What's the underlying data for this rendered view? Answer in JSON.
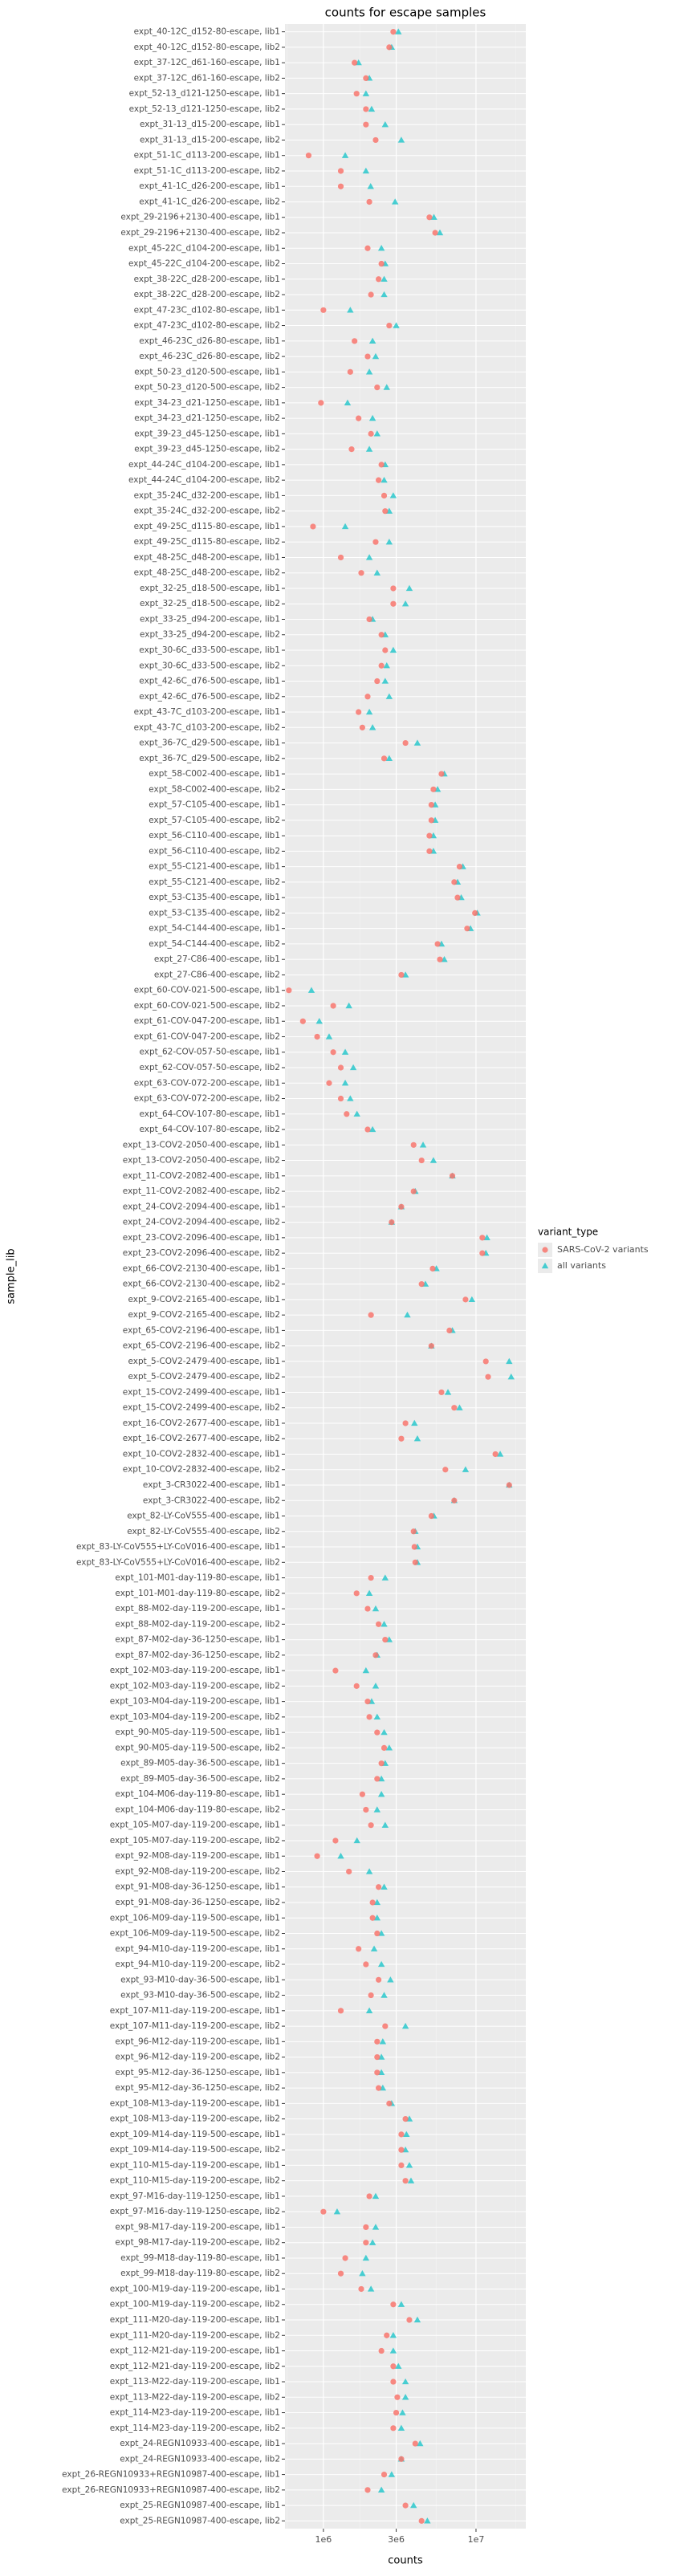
{
  "chart_data": {
    "type": "scatter",
    "title": "counts for escape samples",
    "x_label": "counts",
    "y_label": "sample_lib",
    "legend_title": "variant_type",
    "legend_position": "right",
    "grid": true,
    "xscale": "log",
    "xlim": [
      560000,
      21200000
    ],
    "xticks": [
      {
        "value": 1000000,
        "label": "1e6"
      },
      {
        "value": 3000000,
        "label": "3e6"
      },
      {
        "value": 10000000,
        "label": "1e7"
      }
    ],
    "categories": [
      "expt_40-12C_d152-80-escape, lib1",
      "expt_40-12C_d152-80-escape, lib2",
      "expt_37-12C_d61-160-escape, lib1",
      "expt_37-12C_d61-160-escape, lib2",
      "expt_52-13_d121-1250-escape, lib1",
      "expt_52-13_d121-1250-escape, lib2",
      "expt_31-13_d15-200-escape, lib1",
      "expt_31-13_d15-200-escape, lib2",
      "expt_51-1C_d113-200-escape, lib1",
      "expt_51-1C_d113-200-escape, lib2",
      "expt_41-1C_d26-200-escape, lib1",
      "expt_41-1C_d26-200-escape, lib2",
      "expt_29-2196+2130-400-escape, lib1",
      "expt_29-2196+2130-400-escape, lib2",
      "expt_45-22C_d104-200-escape, lib1",
      "expt_45-22C_d104-200-escape, lib2",
      "expt_38-22C_d28-200-escape, lib1",
      "expt_38-22C_d28-200-escape, lib2",
      "expt_47-23C_d102-80-escape, lib1",
      "expt_47-23C_d102-80-escape, lib2",
      "expt_46-23C_d26-80-escape, lib1",
      "expt_46-23C_d26-80-escape, lib2",
      "expt_50-23_d120-500-escape, lib1",
      "expt_50-23_d120-500-escape, lib2",
      "expt_34-23_d21-1250-escape, lib1",
      "expt_34-23_d21-1250-escape, lib2",
      "expt_39-23_d45-1250-escape, lib1",
      "expt_39-23_d45-1250-escape, lib2",
      "expt_44-24C_d104-200-escape, lib1",
      "expt_44-24C_d104-200-escape, lib2",
      "expt_35-24C_d32-200-escape, lib1",
      "expt_35-24C_d32-200-escape, lib2",
      "expt_49-25C_d115-80-escape, lib1",
      "expt_49-25C_d115-80-escape, lib2",
      "expt_48-25C_d48-200-escape, lib1",
      "expt_48-25C_d48-200-escape, lib2",
      "expt_32-25_d18-500-escape, lib1",
      "expt_32-25_d18-500-escape, lib2",
      "expt_33-25_d94-200-escape, lib1",
      "expt_33-25_d94-200-escape, lib2",
      "expt_30-6C_d33-500-escape, lib1",
      "expt_30-6C_d33-500-escape, lib2",
      "expt_42-6C_d76-500-escape, lib1",
      "expt_42-6C_d76-500-escape, lib2",
      "expt_43-7C_d103-200-escape, lib1",
      "expt_43-7C_d103-200-escape, lib2",
      "expt_36-7C_d29-500-escape, lib1",
      "expt_36-7C_d29-500-escape, lib2",
      "expt_58-C002-400-escape, lib1",
      "expt_58-C002-400-escape, lib2",
      "expt_57-C105-400-escape, lib1",
      "expt_57-C105-400-escape, lib2",
      "expt_56-C110-400-escape, lib1",
      "expt_56-C110-400-escape, lib2",
      "expt_55-C121-400-escape, lib1",
      "expt_55-C121-400-escape, lib2",
      "expt_53-C135-400-escape, lib1",
      "expt_53-C135-400-escape, lib2",
      "expt_54-C144-400-escape, lib1",
      "expt_54-C144-400-escape, lib2",
      "expt_27-C86-400-escape, lib1",
      "expt_27-C86-400-escape, lib2",
      "expt_60-COV-021-500-escape, lib1",
      "expt_60-COV-021-500-escape, lib2",
      "expt_61-COV-047-200-escape, lib1",
      "expt_61-COV-047-200-escape, lib2",
      "expt_62-COV-057-50-escape, lib1",
      "expt_62-COV-057-50-escape, lib2",
      "expt_63-COV-072-200-escape, lib1",
      "expt_63-COV-072-200-escape, lib2",
      "expt_64-COV-107-80-escape, lib1",
      "expt_64-COV-107-80-escape, lib2",
      "expt_13-COV2-2050-400-escape, lib1",
      "expt_13-COV2-2050-400-escape, lib2",
      "expt_11-COV2-2082-400-escape, lib1",
      "expt_11-COV2-2082-400-escape, lib2",
      "expt_24-COV2-2094-400-escape, lib1",
      "expt_24-COV2-2094-400-escape, lib2",
      "expt_23-COV2-2096-400-escape, lib1",
      "expt_23-COV2-2096-400-escape, lib2",
      "expt_66-COV2-2130-400-escape, lib1",
      "expt_66-COV2-2130-400-escape, lib2",
      "expt_9-COV2-2165-400-escape, lib1",
      "expt_9-COV2-2165-400-escape, lib2",
      "expt_65-COV2-2196-400-escape, lib1",
      "expt_65-COV2-2196-400-escape, lib2",
      "expt_5-COV2-2479-400-escape, lib1",
      "expt_5-COV2-2479-400-escape, lib2",
      "expt_15-COV2-2499-400-escape, lib1",
      "expt_15-COV2-2499-400-escape, lib2",
      "expt_16-COV2-2677-400-escape, lib1",
      "expt_16-COV2-2677-400-escape, lib2",
      "expt_10-COV2-2832-400-escape, lib1",
      "expt_10-COV2-2832-400-escape, lib2",
      "expt_3-CR3022-400-escape, lib1",
      "expt_3-CR3022-400-escape, lib2",
      "expt_82-LY-CoV555-400-escape, lib1",
      "expt_82-LY-CoV555-400-escape, lib2",
      "expt_83-LY-CoV555+LY-CoV016-400-escape, lib1",
      "expt_83-LY-CoV555+LY-CoV016-400-escape, lib2",
      "expt_101-M01-day-119-80-escape, lib1",
      "expt_101-M01-day-119-80-escape, lib2",
      "expt_88-M02-day-119-200-escape, lib1",
      "expt_88-M02-day-119-200-escape, lib2",
      "expt_87-M02-day-36-1250-escape, lib1",
      "expt_87-M02-day-36-1250-escape, lib2",
      "expt_102-M03-day-119-200-escape, lib1",
      "expt_102-M03-day-119-200-escape, lib2",
      "expt_103-M04-day-119-200-escape, lib1",
      "expt_103-M04-day-119-200-escape, lib2",
      "expt_90-M05-day-119-500-escape, lib1",
      "expt_90-M05-day-119-500-escape, lib2",
      "expt_89-M05-day-36-500-escape, lib1",
      "expt_89-M05-day-36-500-escape, lib2",
      "expt_104-M06-day-119-80-escape, lib1",
      "expt_104-M06-day-119-80-escape, lib2",
      "expt_105-M07-day-119-200-escape, lib1",
      "expt_105-M07-day-119-200-escape, lib2",
      "expt_92-M08-day-119-200-escape, lib1",
      "expt_92-M08-day-119-200-escape, lib2",
      "expt_91-M08-day-36-1250-escape, lib1",
      "expt_91-M08-day-36-1250-escape, lib2",
      "expt_106-M09-day-119-500-escape, lib1",
      "expt_106-M09-day-119-500-escape, lib2",
      "expt_94-M10-day-119-200-escape, lib1",
      "expt_94-M10-day-119-200-escape, lib2",
      "expt_93-M10-day-36-500-escape, lib1",
      "expt_93-M10-day-36-500-escape, lib2",
      "expt_107-M11-day-119-200-escape, lib1",
      "expt_107-M11-day-119-200-escape, lib2",
      "expt_96-M12-day-119-200-escape, lib1",
      "expt_96-M12-day-119-200-escape, lib2",
      "expt_95-M12-day-36-1250-escape, lib1",
      "expt_95-M12-day-36-1250-escape, lib2",
      "expt_108-M13-day-119-200-escape, lib1",
      "expt_108-M13-day-119-200-escape, lib2",
      "expt_109-M14-day-119-500-escape, lib1",
      "expt_109-M14-day-119-500-escape, lib2",
      "expt_110-M15-day-119-200-escape, lib1",
      "expt_110-M15-day-119-200-escape, lib2",
      "expt_97-M16-day-119-1250-escape, lib1",
      "expt_97-M16-day-119-1250-escape, lib2",
      "expt_98-M17-day-119-200-escape, lib1",
      "expt_98-M17-day-119-200-escape, lib2",
      "expt_99-M18-day-119-80-escape, lib1",
      "expt_99-M18-day-119-80-escape, lib2",
      "expt_100-M19-day-119-200-escape, lib1",
      "expt_100-M19-day-119-200-escape, lib2",
      "expt_111-M20-day-119-200-escape, lib1",
      "expt_111-M20-day-119-200-escape, lib2",
      "expt_112-M21-day-119-200-escape, lib1",
      "expt_112-M21-day-119-200-escape, lib2",
      "expt_113-M22-day-119-200-escape, lib1",
      "expt_113-M22-day-119-200-escape, lib2",
      "expt_114-M23-day-119-200-escape, lib1",
      "expt_114-M23-day-119-200-escape, lib2",
      "expt_24-REGN10933-400-escape, lib1",
      "expt_24-REGN10933-400-escape, lib2",
      "expt_26-REGN10933+REGN10987-400-escape, lib1",
      "expt_26-REGN10933+REGN10987-400-escape, lib2",
      "expt_25-REGN10987-400-escape, lib1",
      "expt_25-REGN10987-400-escape, lib2"
    ],
    "series": [
      {
        "name": "SARS-CoV-2 variants",
        "color": "#F8766D",
        "marker": "circle",
        "values": [
          2870000,
          2700000,
          1600000,
          1900000,
          1650000,
          1900000,
          1900000,
          2200000,
          800000,
          1300000,
          1300000,
          2000000,
          4950000,
          5400000,
          1950000,
          2400000,
          2300000,
          2050000,
          1000000,
          2700000,
          1600000,
          1950000,
          1500000,
          2250000,
          964000,
          1700000,
          2050000,
          1530000,
          2400000,
          2300000,
          2500000,
          2540000,
          855000,
          2200000,
          1300000,
          1770000,
          2870000,
          2870000,
          2000000,
          2400000,
          2540000,
          2400000,
          2250000,
          1950000,
          1700000,
          1800000,
          3450000,
          2500000,
          5940000,
          5260000,
          5100000,
          5100000,
          4950000,
          4950000,
          7800000,
          7200000,
          7570000,
          9850000,
          8750000,
          5600000,
          5800000,
          3240000,
          594000,
          1160000,
          734000,
          910000,
          1160000,
          1300000,
          1090000,
          1300000,
          1420000,
          1950000,
          3900000,
          4400000,
          7000000,
          3900000,
          3240000,
          2800000,
          11000000,
          11000000,
          5200000,
          4400000,
          8540000,
          2050000,
          6700000,
          5100000,
          11600000,
          12000000,
          5940000,
          7200000,
          3450000,
          3240000,
          13400000,
          6300000,
          16500000,
          7200000,
          5100000,
          3900000,
          3950000,
          4000000,
          2050000,
          1650000,
          1950000,
          2300000,
          2540000,
          2200000,
          1200000,
          1650000,
          1950000,
          2000000,
          2250000,
          2500000,
          2400000,
          2250000,
          1800000,
          1900000,
          2050000,
          1200000,
          910000,
          1470000,
          2300000,
          2100000,
          2100000,
          2250000,
          1700000,
          1900000,
          2300000,
          2050000,
          1300000,
          2540000,
          2250000,
          2250000,
          2250000,
          2300000,
          2700000,
          3450000,
          3240000,
          3240000,
          3240000,
          3450000,
          2000000,
          1000000,
          1900000,
          1900000,
          1390000,
          1300000,
          1770000,
          2870000,
          3660000,
          2600000,
          2400000,
          2870000,
          2870000,
          3050000,
          3000000,
          2870000,
          4000000,
          3240000,
          2500000,
          1950000,
          3450000,
          4400000
        ]
      },
      {
        "name": "all variants",
        "color": "#00BFC4",
        "marker": "triangle",
        "values": [
          3100000,
          2800000,
          1700000,
          2000000,
          1900000,
          2070000,
          2540000,
          3240000,
          1390000,
          1900000,
          2040000,
          2950000,
          5300000,
          5800000,
          2400000,
          2540000,
          2500000,
          2500000,
          1500000,
          3000000,
          2100000,
          2200000,
          2000000,
          2600000,
          1440000,
          2100000,
          2250000,
          2000000,
          2540000,
          2500000,
          2870000,
          2700000,
          1390000,
          2700000,
          2000000,
          2250000,
          3660000,
          3450000,
          2100000,
          2540000,
          2870000,
          2600000,
          2540000,
          2700000,
          2000000,
          2100000,
          4130000,
          2700000,
          6200000,
          5600000,
          5400000,
          5400000,
          5260000,
          5260000,
          8200000,
          7570000,
          8000000,
          10200000,
          9200000,
          5940000,
          6200000,
          3450000,
          835000,
          1470000,
          940000,
          1090000,
          1390000,
          1570000,
          1390000,
          1500000,
          1660000,
          2100000,
          4500000,
          5260000,
          7000000,
          4000000,
          3240000,
          2800000,
          11800000,
          11600000,
          5500000,
          4660000,
          9400000,
          3550000,
          7000000,
          5100000,
          16500000,
          17000000,
          6550000,
          7800000,
          3950000,
          4130000,
          14400000,
          8540000,
          16500000,
          7200000,
          5300000,
          4000000,
          4130000,
          4130000,
          2540000,
          2000000,
          2200000,
          2500000,
          2700000,
          2250000,
          1900000,
          2200000,
          2070000,
          2250000,
          2500000,
          2700000,
          2540000,
          2400000,
          2400000,
          2250000,
          2540000,
          1660000,
          1300000,
          2000000,
          2500000,
          2250000,
          2250000,
          2400000,
          2150000,
          2400000,
          2750000,
          2500000,
          2000000,
          3450000,
          2450000,
          2400000,
          2400000,
          2450000,
          2800000,
          3660000,
          3500000,
          3450000,
          3660000,
          3750000,
          2200000,
          1230000,
          2200000,
          2100000,
          1900000,
          1800000,
          2050000,
          3240000,
          4130000,
          2870000,
          2870000,
          3100000,
          3450000,
          3450000,
          3300000,
          3240000,
          4300000,
          3240000,
          2800000,
          2400000,
          3900000,
          4800000
        ]
      }
    ]
  }
}
